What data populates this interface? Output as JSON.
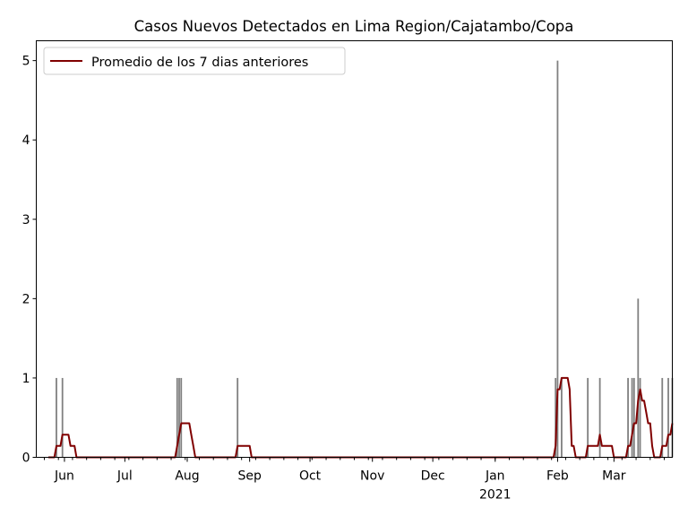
{
  "chart_data": {
    "type": "bar",
    "title": "Casos Nuevos Detectados en Lima Region/Cajatambo/Copa",
    "xlabel": "",
    "ylabel": "",
    "xlim": [
      "2020-05-18",
      "2021-03-30"
    ],
    "ylim": [
      0,
      5.25
    ],
    "yticks": [
      0,
      1,
      2,
      3,
      4,
      5
    ],
    "xticks": [
      {
        "date": "2020-06-01",
        "label": "Jun"
      },
      {
        "date": "2020-07-01",
        "label": "Jul"
      },
      {
        "date": "2020-08-01",
        "label": "Aug"
      },
      {
        "date": "2020-09-01",
        "label": "Sep"
      },
      {
        "date": "2020-10-01",
        "label": "Oct"
      },
      {
        "date": "2020-11-01",
        "label": "Nov"
      },
      {
        "date": "2020-12-01",
        "label": "Dec"
      },
      {
        "date": "2021-01-01",
        "label": "Jan",
        "sublabel": "2021"
      },
      {
        "date": "2021-02-01",
        "label": "Feb"
      },
      {
        "date": "2021-03-01",
        "label": "Mar"
      }
    ],
    "series_start": "2020-05-24",
    "series_end": "2021-03-30",
    "daily_cases_nonzero": [
      {
        "date": "2020-05-17",
        "value": 1
      },
      {
        "date": "2020-05-28",
        "value": 1
      },
      {
        "date": "2020-05-31",
        "value": 1
      },
      {
        "date": "2020-07-27",
        "value": 1
      },
      {
        "date": "2020-07-28",
        "value": 1
      },
      {
        "date": "2020-07-29",
        "value": 1
      },
      {
        "date": "2020-08-26",
        "value": 1
      },
      {
        "date": "2021-01-31",
        "value": 1
      },
      {
        "date": "2021-02-01",
        "value": 5
      },
      {
        "date": "2021-02-03",
        "value": 1
      },
      {
        "date": "2021-02-16",
        "value": 1
      },
      {
        "date": "2021-02-22",
        "value": 1
      },
      {
        "date": "2021-03-08",
        "value": 1
      },
      {
        "date": "2021-03-10",
        "value": 1
      },
      {
        "date": "2021-03-11",
        "value": 1
      },
      {
        "date": "2021-03-13",
        "value": 2
      },
      {
        "date": "2021-03-14",
        "value": 1
      },
      {
        "date": "2021-03-25",
        "value": 1
      },
      {
        "date": "2021-03-28",
        "value": 1
      },
      {
        "date": "2021-03-30",
        "value": 1
      }
    ],
    "series": [
      {
        "name": "Casos nuevos",
        "kind": "bar",
        "color": "#808080"
      },
      {
        "name": "Promedio de los 7 dias anteriores",
        "kind": "line",
        "window": 7,
        "color": "#800000"
      }
    ],
    "legend": {
      "placement": "top-left",
      "label": "Promedio de los 7 dias anteriores"
    },
    "grid": false
  }
}
